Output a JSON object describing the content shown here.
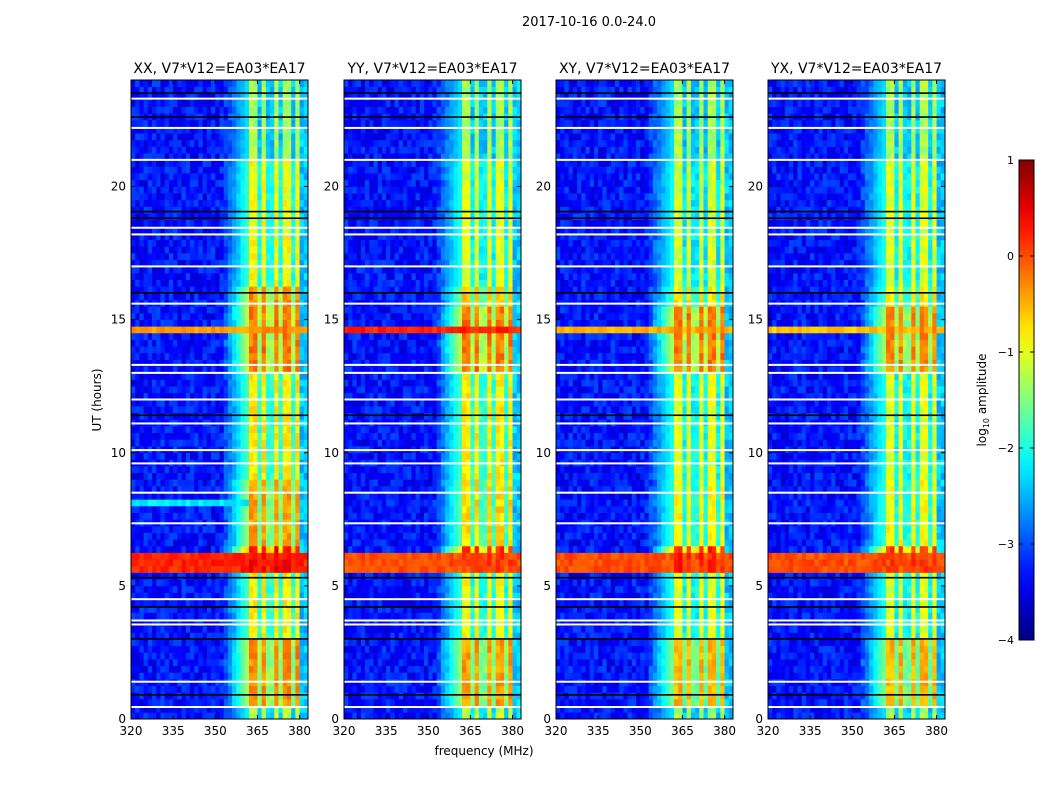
{
  "chart_data": {
    "type": "heatmap",
    "suptitle": "2017-10-16 0.0-24.0",
    "xlabel": "frequency (MHz)",
    "ylabel": "UT (hours)",
    "xlim": [
      320,
      383
    ],
    "ylim": [
      0,
      24
    ],
    "xticks": [
      320,
      335,
      350,
      365,
      380
    ],
    "xtick_labels": [
      "320",
      "335",
      "350",
      "365",
      "380"
    ],
    "yticks": [
      0,
      5,
      10,
      15,
      20
    ],
    "ytick_labels": [
      "0",
      "5",
      "10",
      "15",
      "20"
    ],
    "colorbar": {
      "label_main": "log",
      "label_sub": "10",
      "label_rest": " amplitude",
      "range": [
        -4,
        1
      ],
      "ticks": [
        1,
        0,
        -1,
        -2,
        -3,
        -4
      ],
      "tick_labels": [
        "1",
        "0",
        "−1",
        "−2",
        "−3",
        "−4"
      ],
      "colormap": "jet"
    },
    "common": {
      "background_level": -3.3,
      "band_range_mhz": [
        362,
        380
      ],
      "band_column_dips_mhz": [
        365.5,
        369.5,
        373.5,
        377.2
      ],
      "edge_fade_start_mhz": 352,
      "above_band_level": -2.4,
      "flagged_white_hours": [
        0.45,
        1.4,
        3.55,
        3.7,
        4.5,
        7.35,
        8.5,
        9.6,
        10.1,
        11.1,
        12.0,
        13.0,
        13.3,
        15.6,
        17.0,
        18.2,
        18.45,
        21.0,
        22.2,
        23.3
      ],
      "flagged_black_hours": [
        0.9,
        3.0,
        4.2,
        5.3,
        11.4,
        16.0,
        18.8,
        19.05,
        22.6,
        23.5
      ]
    },
    "panels": [
      {
        "title": "XX, V7*V12=EA03*EA17",
        "band_levels": [
          [
            0,
            0.5,
            -1.2
          ],
          [
            0.5,
            3,
            -0.3
          ],
          [
            3,
            5.5,
            -0.8
          ],
          [
            5.5,
            6.6,
            0.4
          ],
          [
            6.6,
            9,
            -0.4
          ],
          [
            9,
            13,
            -0.8
          ],
          [
            13,
            15.5,
            -0.2
          ],
          [
            15.5,
            16.3,
            -0.3
          ],
          [
            16.3,
            21,
            -0.9
          ],
          [
            21,
            24,
            -1.3
          ]
        ],
        "rfi_rows": [
          [
            5.6,
            6.3,
            0.2
          ],
          [
            14.5,
            14.8,
            -0.4
          ],
          [
            7.9,
            8.2,
            -2.2
          ]
        ]
      },
      {
        "title": "YY, V7*V12=EA03*EA17",
        "band_levels": [
          [
            0,
            0.5,
            -1.2
          ],
          [
            0.5,
            3,
            -0.4
          ],
          [
            3,
            5.5,
            -0.9
          ],
          [
            5.5,
            6.6,
            0.1
          ],
          [
            6.6,
            9,
            -0.7
          ],
          [
            9,
            13,
            -0.8
          ],
          [
            13,
            15.5,
            -0.2
          ],
          [
            15.5,
            16.3,
            -0.6
          ],
          [
            16.3,
            21,
            -1.0
          ],
          [
            21,
            24,
            -1.3
          ]
        ],
        "rfi_rows": [
          [
            5.6,
            6.3,
            0.0
          ],
          [
            14.4,
            14.8,
            0.2
          ]
        ]
      },
      {
        "title": "XY, V7*V12=EA03*EA17",
        "band_levels": [
          [
            0,
            0.5,
            -1.3
          ],
          [
            0.5,
            3,
            -0.5
          ],
          [
            3,
            5.5,
            -1.0
          ],
          [
            5.5,
            6.6,
            0.2
          ],
          [
            6.6,
            9,
            -0.9
          ],
          [
            9,
            13,
            -1.0
          ],
          [
            13,
            15.5,
            -0.2
          ],
          [
            15.5,
            16.3,
            -0.8
          ],
          [
            16.3,
            21,
            -1.1
          ],
          [
            21,
            24,
            -1.3
          ]
        ],
        "rfi_rows": [
          [
            5.6,
            6.3,
            0.0
          ],
          [
            14.5,
            14.8,
            -0.5
          ]
        ]
      },
      {
        "title": "YX, V7*V12=EA03*EA17",
        "band_levels": [
          [
            0,
            0.5,
            -1.3
          ],
          [
            0.5,
            3,
            -0.5
          ],
          [
            3,
            5.5,
            -1.0
          ],
          [
            5.5,
            6.6,
            0.1
          ],
          [
            6.6,
            9,
            -0.9
          ],
          [
            9,
            13,
            -1.0
          ],
          [
            13,
            15.5,
            -0.3
          ],
          [
            15.5,
            16.3,
            -0.8
          ],
          [
            16.3,
            21,
            -1.0
          ],
          [
            21,
            24,
            -1.3
          ]
        ],
        "rfi_rows": [
          [
            5.6,
            6.3,
            0.0
          ],
          [
            14.5,
            14.8,
            -0.6
          ]
        ]
      }
    ]
  }
}
